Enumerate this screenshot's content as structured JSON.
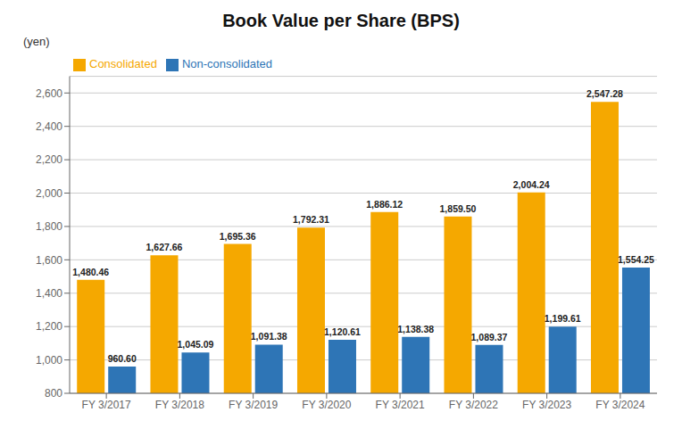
{
  "chart_data": {
    "type": "bar",
    "title": "Book Value per Share (BPS)",
    "ylabel": "(yen)",
    "categories": [
      "FY 3/2017",
      "FY 3/2018",
      "FY 3/2019",
      "FY 3/2020",
      "FY 3/2021",
      "FY 3/2022",
      "FY 3/2023",
      "FY 3/2024"
    ],
    "series": [
      {
        "name": "Consolidated",
        "color": "#F5A800",
        "values": [
          1480.46,
          1627.66,
          1695.36,
          1792.31,
          1886.12,
          1859.5,
          2004.24,
          2547.28
        ],
        "value_labels": [
          "1,480.46",
          "1,627.66",
          "1,695.36",
          "1,792.31",
          "1,886.12",
          "1,859.50",
          "2,004.24",
          "2,547.28"
        ]
      },
      {
        "name": "Non-consolidated",
        "color": "#2E75B6",
        "values": [
          960.6,
          1045.09,
          1091.38,
          1120.61,
          1138.38,
          1089.37,
          1199.61,
          1554.25
        ],
        "value_labels": [
          "960.60",
          "1,045.09",
          "1,091.38",
          "1,120.61",
          "1,138.38",
          "1,089.37",
          "1,199.61",
          "1,554.25"
        ]
      }
    ],
    "ylim": [
      800,
      2700
    ],
    "yticks": [
      800,
      {
        "value": 1000,
        "label": "1,000"
      },
      {
        "value": 1200,
        "label": "1,200"
      },
      {
        "value": 1400,
        "label": "1,400"
      },
      {
        "value": 1600,
        "label": "1,600"
      },
      {
        "value": 1800,
        "label": "1,800"
      },
      {
        "value": 2000,
        "label": "2,000"
      },
      {
        "value": 2200,
        "label": "2,200"
      },
      {
        "value": 2400,
        "label": "2,400"
      },
      {
        "value": 2600,
        "label": "2,600"
      }
    ],
    "grid": true,
    "legend": "upper left",
    "data_labels": true
  }
}
